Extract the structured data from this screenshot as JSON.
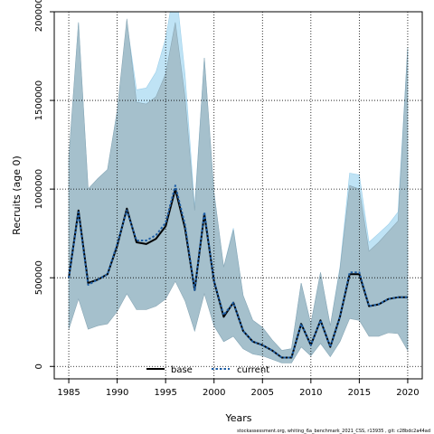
{
  "chart_data": {
    "type": "area",
    "title": "",
    "xlabel": "Years",
    "ylabel": "Recruits (age 0)",
    "xlim": [
      1983.5,
      2021.5
    ],
    "ylim": [
      -70000,
      2000000
    ],
    "x_ticks": [
      1985,
      1990,
      1995,
      2000,
      2005,
      2010,
      2015,
      2020
    ],
    "x_tick_labels": [
      "1985",
      "1990",
      "1995",
      "2000",
      "2005",
      "2010",
      "2015",
      "2020"
    ],
    "y_ticks": [
      0,
      500000,
      1000000,
      1500000,
      2000000
    ],
    "y_tick_labels": [
      "0",
      "500000",
      "1000000",
      "1500000",
      "2000000"
    ],
    "grid": true,
    "legend_position": "bottom-center",
    "x": [
      1985,
      1986,
      1987,
      1988,
      1989,
      1990,
      1991,
      1992,
      1993,
      1994,
      1995,
      1996,
      1997,
      1998,
      1999,
      2000,
      2001,
      2002,
      2003,
      2004,
      2005,
      2006,
      2007,
      2008,
      2009,
      2010,
      2011,
      2012,
      2013,
      2014,
      2015,
      2016,
      2017,
      2018,
      2019,
      2020
    ],
    "series": [
      {
        "name": "base",
        "color": "#000000",
        "line_style": "solid",
        "band_color": "#a5c0cc",
        "values": [
          500000,
          880000,
          470000,
          490000,
          520000,
          680000,
          890000,
          700000,
          690000,
          720000,
          790000,
          1000000,
          780000,
          430000,
          860000,
          480000,
          280000,
          360000,
          200000,
          140000,
          120000,
          90000,
          50000,
          50000,
          240000,
          120000,
          260000,
          110000,
          280000,
          520000,
          520000,
          340000,
          350000,
          380000,
          390000,
          390000
        ],
        "lower": [
          210000,
          380000,
          210000,
          230000,
          240000,
          310000,
          410000,
          320000,
          320000,
          340000,
          380000,
          480000,
          370000,
          200000,
          410000,
          230000,
          140000,
          170000,
          100000,
          70000,
          60000,
          40000,
          20000,
          20000,
          110000,
          60000,
          130000,
          55000,
          140000,
          270000,
          260000,
          170000,
          170000,
          190000,
          185000,
          90000
        ],
        "upper": [
          1180000,
          1940000,
          1000000,
          1060000,
          1110000,
          1440000,
          1960000,
          1490000,
          1480000,
          1520000,
          1650000,
          1940000,
          1520000,
          880000,
          1740000,
          980000,
          560000,
          770000,
          400000,
          260000,
          220000,
          150000,
          90000,
          100000,
          470000,
          240000,
          530000,
          230000,
          550000,
          1020000,
          1000000,
          650000,
          700000,
          760000,
          820000,
          1800000
        ]
      },
      {
        "name": "current",
        "color": "#1f5fa6",
        "line_style": "dashed",
        "band_color": "#bfe3f5",
        "values": [
          500000,
          870000,
          460000,
          490000,
          520000,
          690000,
          880000,
          710000,
          710000,
          740000,
          810000,
          1020000,
          800000,
          430000,
          870000,
          480000,
          290000,
          360000,
          200000,
          140000,
          120000,
          90000,
          50000,
          50000,
          240000,
          120000,
          260000,
          110000,
          280000,
          530000,
          530000,
          340000,
          350000,
          380000,
          390000,
          390000
        ],
        "lower": [
          220000,
          390000,
          220000,
          230000,
          250000,
          320000,
          410000,
          330000,
          330000,
          350000,
          390000,
          490000,
          380000,
          200000,
          420000,
          230000,
          140000,
          170000,
          100000,
          70000,
          60000,
          40000,
          20000,
          20000,
          110000,
          60000,
          130000,
          55000,
          140000,
          280000,
          270000,
          175000,
          175000,
          195000,
          190000,
          95000
        ],
        "upper": [
          1160000,
          1940000,
          1000000,
          1060000,
          1110000,
          1440000,
          1940000,
          1560000,
          1570000,
          1660000,
          1850000,
          2170000,
          1650000,
          900000,
          1740000,
          980000,
          560000,
          780000,
          400000,
          260000,
          220000,
          150000,
          90000,
          100000,
          470000,
          240000,
          530000,
          230000,
          560000,
          1090000,
          1080000,
          700000,
          750000,
          800000,
          870000,
          1800000
        ]
      }
    ]
  },
  "footnote": "stockassessment.org,  whiting_6a_benchmark_2021_CSS,  r13935 ,  git: c28bdc2a44ad"
}
